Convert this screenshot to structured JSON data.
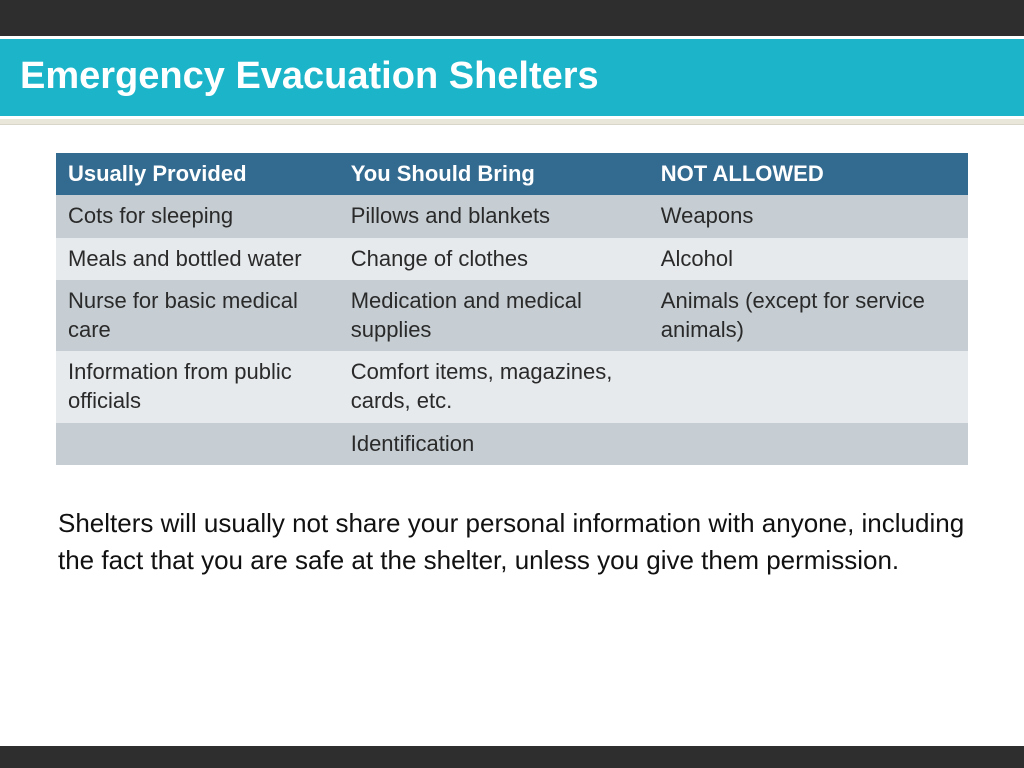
{
  "title": "Emergency Evacuation Shelters",
  "table": {
    "header_bg": "#336a90",
    "header_color": "#ffffff",
    "row_colors_alt": [
      "#c6ced3",
      "#e6eaed"
    ],
    "columns": [
      "Usually Provided",
      "You Should Bring",
      "NOT ALLOWED"
    ],
    "rows": [
      [
        "Cots for sleeping",
        "Pillows and blankets",
        "Weapons"
      ],
      [
        "Meals and bottled water",
        "Change of clothes",
        "Alcohol"
      ],
      [
        "Nurse for basic medical care",
        "Medication and medical supplies",
        "Animals (except for service animals)"
      ],
      [
        "Information from public officials",
        "Comfort items, magazines, cards, etc.",
        ""
      ],
      [
        "",
        "Identification",
        ""
      ]
    ],
    "col_widths_pct": [
      31,
      34,
      35
    ]
  },
  "note": "Shelters will usually not share your personal information with anyone, including the fact that you are safe at the shelter, unless you give them permission.",
  "colors": {
    "top_bar": "#2e2e2e",
    "title_band": "#1cb4c9",
    "divider": "#e9e7da",
    "background": "#ffffff"
  }
}
